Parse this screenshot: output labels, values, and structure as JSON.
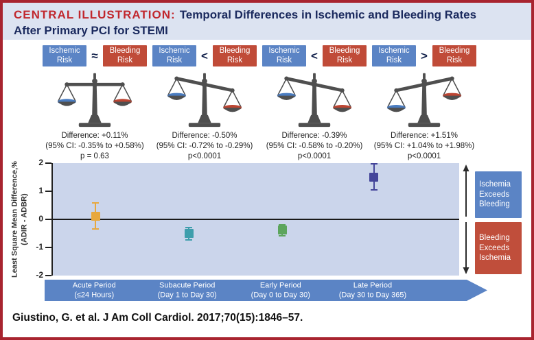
{
  "title": {
    "kicker": "CENTRAL ILLUSTRATION:",
    "text": "Temporal Differences in Ischemic and Bleeding Rates After Primary PCI for STEMI"
  },
  "panels": [
    {
      "left": "Ischemic Risk",
      "relation": "≈",
      "right": "Bleeding Risk",
      "balance": "balanced",
      "stats": [
        "Difference: +0.11%",
        "(95% CI: -0.35% to +0.58%)",
        "p = 0.63"
      ]
    },
    {
      "left": "Ischemic Risk",
      "relation": "<",
      "right": "Bleeding Risk",
      "balance": "bleeding-heavier",
      "stats": [
        "Difference: -0.50%",
        "(95% CI: -0.72% to -0.29%)",
        "p<0.0001"
      ]
    },
    {
      "left": "Ischemic Risk",
      "relation": "<",
      "right": "Bleeding Risk",
      "balance": "bleeding-heavier",
      "stats": [
        "Difference: -0.39%",
        "(95% CI: -0.58% to -0.20%)",
        "p<0.0001"
      ]
    },
    {
      "left": "Ischemic Risk",
      "relation": ">",
      "right": "Bleeding Risk",
      "balance": "ischemia-heavier",
      "stats": [
        "Difference: +1.51%",
        "(95% CI: +1.04% to +1.98%)",
        "p<0.0001"
      ]
    }
  ],
  "chart_data": {
    "type": "scatter",
    "ylabel": "Least Square Mean Difference,%",
    "ylabel_sub": "(ADIR - ADBR)",
    "ylim": [
      -2,
      2
    ],
    "yticks": [
      2,
      1,
      0,
      -1,
      -2
    ],
    "zero_line": 0,
    "grid": false,
    "legend": "none",
    "points": [
      {
        "period": "Acute Period",
        "range": "(≤24 Hours)",
        "value": 0.11,
        "ci_low": -0.35,
        "ci_high": 0.58,
        "color": "#E8A83E"
      },
      {
        "period": "Subacute Period",
        "range": "(Day 1 to Day 30)",
        "value": -0.5,
        "ci_low": -0.72,
        "ci_high": -0.29,
        "color": "#3E9EAC"
      },
      {
        "period": "Early Period",
        "range": "(Day 0 to Day 30)",
        "value": -0.39,
        "ci_low": -0.58,
        "ci_high": -0.2,
        "color": "#5CA55C"
      },
      {
        "period": "Late Period",
        "range": "(Day 30 to Day 365)",
        "value": 1.51,
        "ci_low": 1.04,
        "ci_high": 1.98,
        "color": "#44459A"
      }
    ]
  },
  "annotations": {
    "upper": "Ischemia Exceeds Bleeding",
    "upper_color": "#5B84C5",
    "lower": "Bleeding Exceeds Ischemia",
    "lower_color": "#C04E3B"
  },
  "colors": {
    "border": "#A8242F",
    "title_kicker": "#C1272D",
    "title_text": "#1B2A5E",
    "title_band_bg": "#DCE3F1",
    "plot_bg": "#CBD5EB",
    "risk_blue": "#5B84C5",
    "risk_red": "#C04B38"
  },
  "citation": "Giustino, G. et al. J Am Coll Cardiol. 2017;70(15):1846–57."
}
